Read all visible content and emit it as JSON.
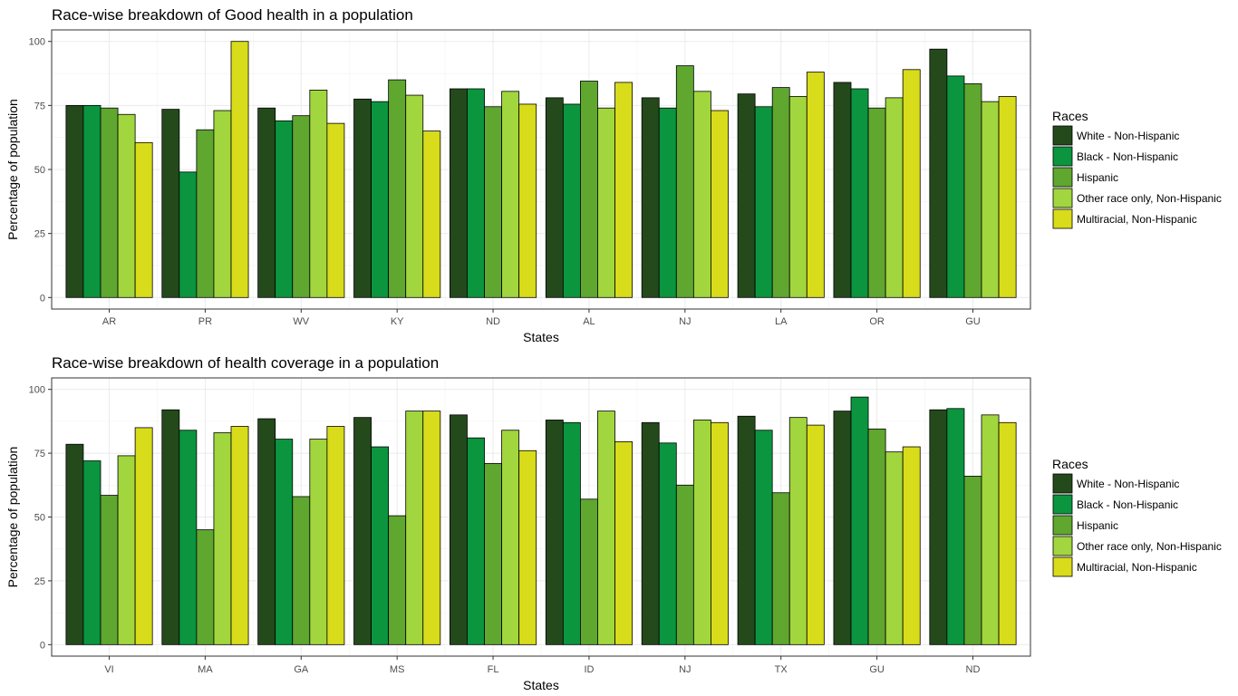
{
  "colors": [
    "#244a1b",
    "#0b953f",
    "#5fa72f",
    "#a1d63e",
    "#d8dc1a"
  ],
  "chart_data": [
    {
      "type": "bar",
      "title": "Race-wise breakdown of Good health in a population",
      "xlabel": "States",
      "ylabel": "Percentage of population",
      "ylim": [
        0,
        100
      ],
      "yticks": [
        0,
        25,
        50,
        75,
        100
      ],
      "grid": true,
      "legend_title": "Races",
      "legend_position": "right",
      "categories": [
        "AR",
        "PR",
        "WV",
        "KY",
        "ND",
        "AL",
        "NJ",
        "LA",
        "OR",
        "GU"
      ],
      "series": [
        {
          "name": "White - Non-Hispanic",
          "values": [
            75,
            73.5,
            74,
            77.5,
            81.5,
            78,
            78,
            79.5,
            84,
            97
          ]
        },
        {
          "name": "Black - Non-Hispanic",
          "values": [
            75,
            49,
            69,
            76.5,
            81.5,
            75.5,
            74,
            74.5,
            81.5,
            86.5
          ]
        },
        {
          "name": "Hispanic",
          "values": [
            74,
            65.5,
            71,
            85,
            74.5,
            84.5,
            90.5,
            82,
            74,
            83.5
          ]
        },
        {
          "name": "Other race only, Non-Hispanic",
          "values": [
            71.5,
            73,
            81,
            79,
            80.5,
            74,
            80.5,
            78.5,
            78,
            76.5
          ]
        },
        {
          "name": "Multiracial, Non-Hispanic",
          "values": [
            60.5,
            100,
            68,
            65,
            75.5,
            84,
            73,
            88,
            89,
            78.5
          ]
        }
      ]
    },
    {
      "type": "bar",
      "title": "Race-wise breakdown of health coverage in a population",
      "xlabel": "States",
      "ylabel": "Percentage of population",
      "ylim": [
        0,
        100
      ],
      "yticks": [
        0,
        25,
        50,
        75,
        100
      ],
      "grid": true,
      "legend_title": "Races",
      "legend_position": "right",
      "categories": [
        "VI",
        "MA",
        "GA",
        "MS",
        "FL",
        "ID",
        "NJ",
        "TX",
        "GU",
        "ND"
      ],
      "series": [
        {
          "name": "White - Non-Hispanic",
          "values": [
            78.5,
            92,
            88.5,
            89,
            90,
            88,
            87,
            89.5,
            91.5,
            92
          ]
        },
        {
          "name": "Black - Non-Hispanic",
          "values": [
            72,
            84,
            80.5,
            77.5,
            81,
            87,
            79,
            84,
            97,
            92.5
          ]
        },
        {
          "name": "Hispanic",
          "values": [
            58.5,
            45,
            58,
            50.5,
            71,
            57,
            62.5,
            59.5,
            84.5,
            66
          ]
        },
        {
          "name": "Other race only, Non-Hispanic",
          "values": [
            74,
            83,
            80.5,
            91.5,
            84,
            91.5,
            88,
            89,
            75.5,
            90
          ]
        },
        {
          "name": "Multiracial, Non-Hispanic",
          "values": [
            85,
            85.5,
            85.5,
            91.5,
            76,
            79.5,
            87,
            86,
            77.5,
            87
          ]
        }
      ]
    }
  ]
}
